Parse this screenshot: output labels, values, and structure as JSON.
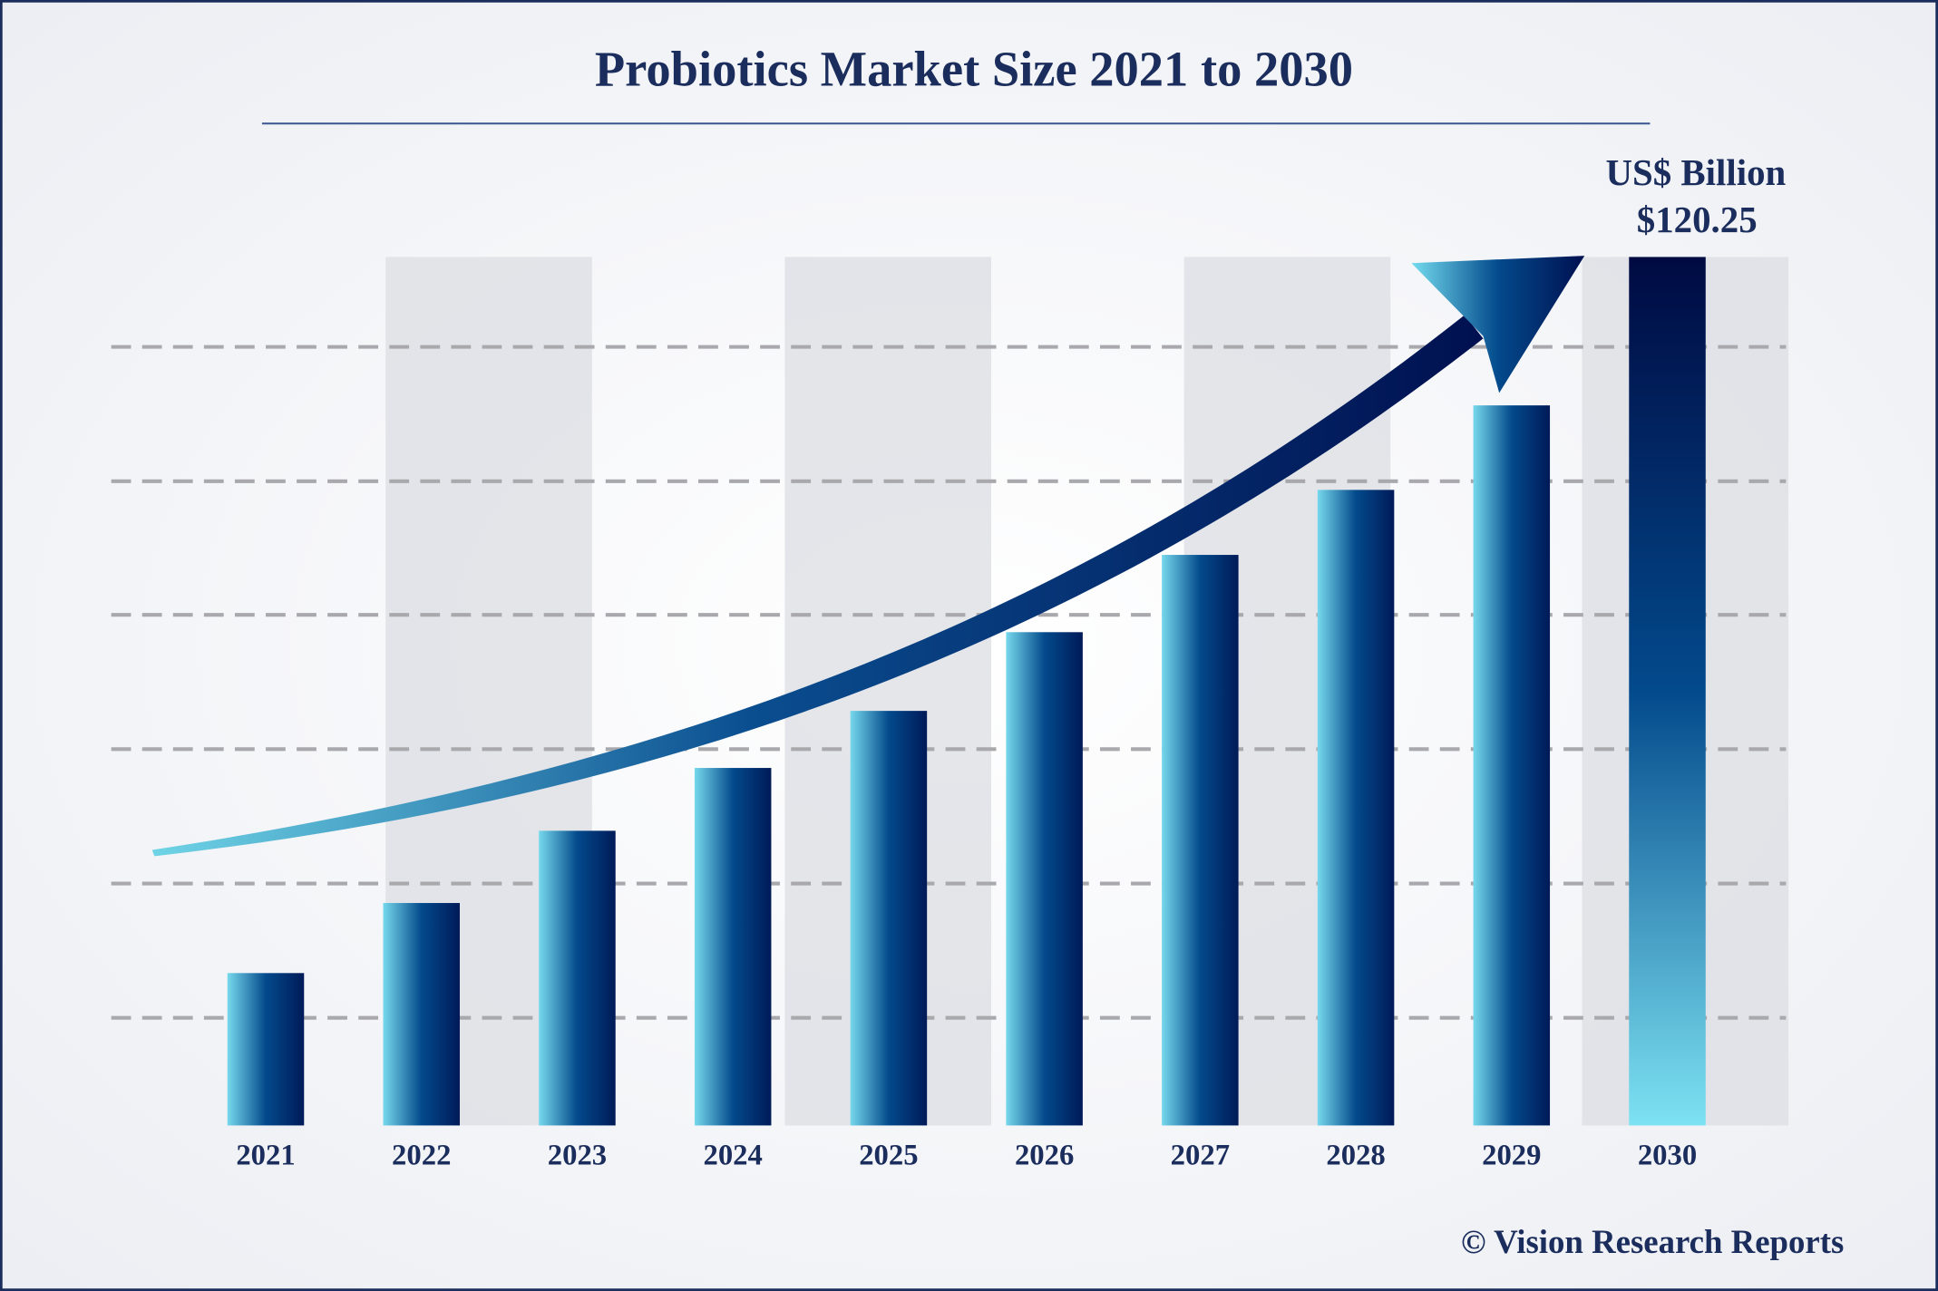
{
  "chart_data": {
    "type": "bar",
    "title": "Probiotics Market Size 2021 to 2030",
    "unit_label": "US$ Billion",
    "source": "© Vision Research Reports",
    "categories": [
      "2021",
      "2022",
      "2023",
      "2024",
      "2025",
      "2026",
      "2027",
      "2028",
      "2029",
      "2030"
    ],
    "values": [
      21.1,
      30.8,
      40.8,
      49.5,
      57.4,
      68.3,
      79.0,
      88.0,
      99.7,
      120.25
    ],
    "value_labels": [
      null,
      null,
      null,
      null,
      null,
      null,
      null,
      null,
      null,
      "$120.25"
    ],
    "gradient": [
      "#76d8ec",
      "#034a8c",
      "#001a58"
    ],
    "highlight_gradient": [
      "#7de2f2",
      "#034a8c",
      "#000a42"
    ],
    "highlight_last": true,
    "ylim": [
      0,
      120.25
    ],
    "yticks": [
      14.9,
      33.5,
      52.1,
      70.7,
      89.2,
      107.8
    ],
    "grid": true
  }
}
